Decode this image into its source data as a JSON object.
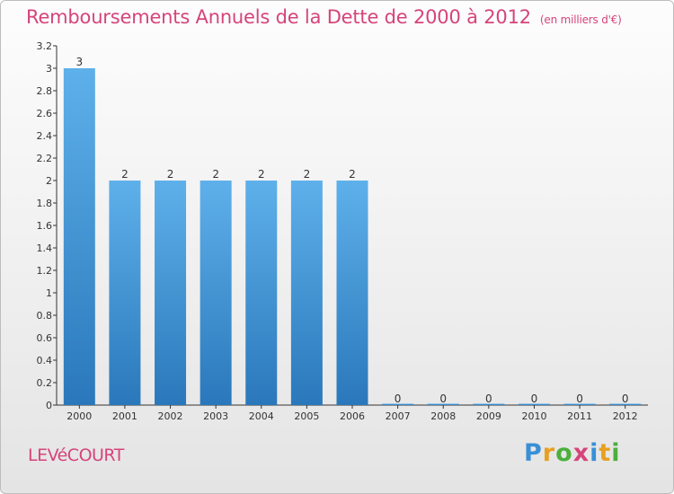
{
  "header": {
    "title": "Remboursements Annuels de la Dette de 2000 à 2012",
    "subtitle": "(en milliers d'€)"
  },
  "footer": {
    "commune": "LEVéCOURT",
    "brand_letters": [
      {
        "ch": "P",
        "color": "#3a8fd6"
      },
      {
        "ch": "r",
        "color": "#e8a020"
      },
      {
        "ch": "o",
        "color": "#4caf3c"
      },
      {
        "ch": "x",
        "color": "#d6447a"
      },
      {
        "ch": "i",
        "color": "#3a8fd6"
      },
      {
        "ch": "t",
        "color": "#e8a020"
      },
      {
        "ch": "i",
        "color": "#4caf3c"
      }
    ]
  },
  "colors": {
    "accent": "#d6447a",
    "bar_light": "#5eb0ea",
    "bar_dark": "#2a78bb",
    "axis": "#333333"
  },
  "chart_data": {
    "type": "bar",
    "title": "Remboursements Annuels de la Dette de 2000 à 2012",
    "subtitle": "(en milliers d'€)",
    "xlabel": "",
    "ylabel": "",
    "categories": [
      "2000",
      "2001",
      "2002",
      "2003",
      "2004",
      "2005",
      "2006",
      "2007",
      "2008",
      "2009",
      "2010",
      "2011",
      "2012"
    ],
    "values": [
      3,
      2,
      2,
      2,
      2,
      2,
      2,
      0,
      0,
      0,
      0,
      0,
      0
    ],
    "data_labels": [
      "3",
      "2",
      "2",
      "2",
      "2",
      "2",
      "2",
      "0",
      "0",
      "0",
      "0",
      "0",
      "0"
    ],
    "ylim": [
      0,
      3.2
    ],
    "yticks": [
      {
        "value": 0,
        "label": "0"
      },
      {
        "value": 0.2,
        "label": "0.2"
      },
      {
        "value": 0.4,
        "label": "0.4"
      },
      {
        "value": 0.6,
        "label": "0.6"
      },
      {
        "value": 0.8,
        "label": "0.8"
      },
      {
        "value": 1.0,
        "label": "1"
      },
      {
        "value": 1.2,
        "label": "1.2"
      },
      {
        "value": 1.4,
        "label": "1.4"
      },
      {
        "value": 1.6,
        "label": "1.6"
      },
      {
        "value": 1.8,
        "label": "1.8"
      },
      {
        "value": 2.0,
        "label": "2"
      },
      {
        "value": 2.2,
        "label": "2.2"
      },
      {
        "value": 2.4,
        "label": "2.4"
      },
      {
        "value": 2.6,
        "label": "2.6"
      },
      {
        "value": 2.8,
        "label": "2.8"
      },
      {
        "value": 3.0,
        "label": "3"
      },
      {
        "value": 3.2,
        "label": "3.2"
      }
    ],
    "grid": false,
    "legend": "none"
  }
}
